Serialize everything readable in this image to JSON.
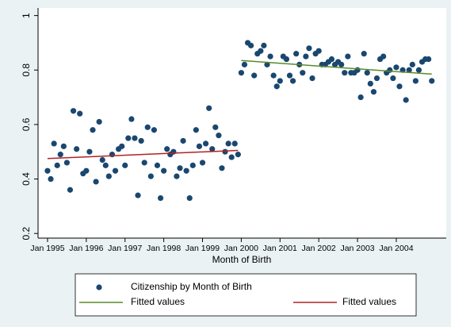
{
  "chart_data": {
    "type": "scatter",
    "xlabel": "Month of Birth",
    "xlim": [
      1994.755,
      2005.29
    ],
    "ylim": [
      0.183,
      1.028
    ],
    "xticks": [
      {
        "value": 1995,
        "label": "Jan 1995"
      },
      {
        "value": 1996,
        "label": "Jan 1996"
      },
      {
        "value": 1997,
        "label": "Jan 1997"
      },
      {
        "value": 1998,
        "label": "Jan 1998"
      },
      {
        "value": 1999,
        "label": "Jan 1999"
      },
      {
        "value": 2000,
        "label": "Jan 2000"
      },
      {
        "value": 2001,
        "label": "Jan 2001"
      },
      {
        "value": 2002,
        "label": "Jan 2002"
      },
      {
        "value": 2003,
        "label": "Jan 2003"
      },
      {
        "value": 2004,
        "label": "Jan 2004"
      }
    ],
    "yticks": [
      0.2,
      0.4,
      0.6,
      0.8,
      1
    ],
    "series": [
      {
        "name": "Citizenship by Month of Birth",
        "type": "scatter",
        "color": "#1a476f",
        "x": [
          1995,
          1995.083,
          1995.167,
          1995.25,
          1995.333,
          1995.417,
          1995.5,
          1995.583,
          1995.667,
          1995.75,
          1995.833,
          1995.917,
          1996,
          1996.083,
          1996.167,
          1996.25,
          1996.333,
          1996.417,
          1996.5,
          1996.583,
          1996.667,
          1996.75,
          1996.833,
          1996.917,
          1997,
          1997.083,
          1997.167,
          1997.25,
          1997.333,
          1997.417,
          1997.5,
          1997.583,
          1997.667,
          1997.75,
          1997.833,
          1997.917,
          1998,
          1998.083,
          1998.167,
          1998.25,
          1998.333,
          1998.417,
          1998.5,
          1998.583,
          1998.667,
          1998.75,
          1998.833,
          1998.917,
          1999,
          1999.083,
          1999.167,
          1999.25,
          1999.333,
          1999.417,
          1999.5,
          1999.583,
          1999.667,
          1999.75,
          1999.833,
          1999.917,
          2000,
          2000.083,
          2000.167,
          2000.25,
          2000.333,
          2000.417,
          2000.5,
          2000.583,
          2000.667,
          2000.75,
          2000.833,
          2000.917,
          2001,
          2001.083,
          2001.167,
          2001.25,
          2001.333,
          2001.417,
          2001.5,
          2001.583,
          2001.667,
          2001.75,
          2001.833,
          2001.917,
          2002,
          2002.083,
          2002.167,
          2002.25,
          2002.333,
          2002.417,
          2002.5,
          2002.583,
          2002.667,
          2002.75,
          2002.833,
          2002.917,
          2003,
          2003.083,
          2003.167,
          2003.25,
          2003.333,
          2003.417,
          2003.5,
          2003.583,
          2003.667,
          2003.75,
          2003.833,
          2003.917,
          2004,
          2004.083,
          2004.167,
          2004.25,
          2004.333,
          2004.417,
          2004.5,
          2004.583,
          2004.667,
          2004.75,
          2004.833,
          2004.917
        ],
        "values": [
          0.43,
          0.4,
          0.53,
          0.45,
          0.49,
          0.52,
          0.46,
          0.36,
          0.65,
          0.51,
          0.64,
          0.42,
          0.43,
          0.5,
          0.58,
          0.39,
          0.61,
          0.47,
          0.45,
          0.41,
          0.49,
          0.43,
          0.51,
          0.52,
          0.45,
          0.55,
          0.62,
          0.55,
          0.34,
          0.54,
          0.46,
          0.59,
          0.41,
          0.58,
          0.45,
          0.33,
          0.43,
          0.51,
          0.49,
          0.5,
          0.41,
          0.44,
          0.54,
          0.43,
          0.33,
          0.45,
          0.58,
          0.52,
          0.46,
          0.53,
          0.66,
          0.51,
          0.59,
          0.56,
          0.44,
          0.5,
          0.53,
          0.48,
          0.53,
          0.49,
          0.79,
          0.82,
          0.9,
          0.89,
          0.78,
          0.86,
          0.87,
          0.89,
          0.82,
          0.85,
          0.78,
          0.74,
          0.76,
          0.85,
          0.84,
          0.78,
          0.76,
          0.86,
          0.82,
          0.79,
          0.85,
          0.88,
          0.77,
          0.86,
          0.87,
          0.82,
          0.82,
          0.83,
          0.84,
          0.82,
          0.83,
          0.82,
          0.79,
          0.85,
          0.79,
          0.79,
          0.8,
          0.7,
          0.86,
          0.79,
          0.75,
          0.72,
          0.77,
          0.84,
          0.85,
          0.79,
          0.8,
          0.77,
          0.81,
          0.74,
          0.8,
          0.69,
          0.8,
          0.82,
          0.76,
          0.8,
          0.83,
          0.84,
          0.84,
          0.76
        ]
      },
      {
        "name": "Fitted values",
        "type": "line",
        "color": "#5a8a2a",
        "x": [
          2000,
          2004.917
        ],
        "values": [
          0.835,
          0.785
        ]
      },
      {
        "name": "Fitted values",
        "type": "line",
        "color": "#b22222",
        "x": [
          1995,
          1999.917
        ],
        "values": [
          0.475,
          0.505
        ]
      }
    ]
  }
}
